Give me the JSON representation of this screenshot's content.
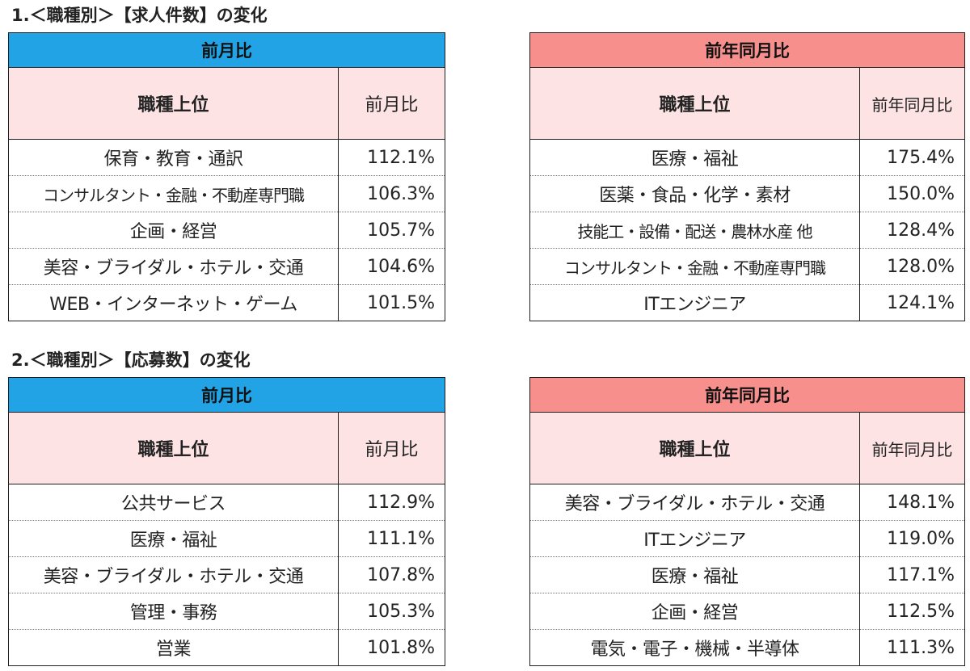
{
  "sections": [
    {
      "title": "1.＜職種別＞【求人件数】の変化",
      "mom": {
        "band": "前月比",
        "col_category": "職種上位",
        "col_value": "前月比",
        "rows": [
          {
            "name": "保育・教育・通訳",
            "value": "112.1%"
          },
          {
            "name": "コンサルタント・金融・不動産専門職",
            "value": "106.3%"
          },
          {
            "name": "企画・経営",
            "value": "105.7%"
          },
          {
            "name": "美容・ブライダル・ホテル・交通",
            "value": "104.6%"
          },
          {
            "name": "WEB・インターネット・ゲーム",
            "value": "101.5%"
          }
        ]
      },
      "yoy": {
        "band": "前年同月比",
        "col_category": "職種上位",
        "col_value": "前年同月比",
        "rows": [
          {
            "name": "医療・福祉",
            "value": "175.4%"
          },
          {
            "name": "医薬・食品・化学・素材",
            "value": "150.0%"
          },
          {
            "name": "技能工・設備・配送・農林水産 他",
            "value": "128.4%"
          },
          {
            "name": "コンサルタント・金融・不動産専門職",
            "value": "128.0%"
          },
          {
            "name": "ITエンジニア",
            "value": "124.1%"
          }
        ]
      }
    },
    {
      "title": "2.＜職種別＞【応募数】の変化",
      "mom": {
        "band": "前月比",
        "col_category": "職種上位",
        "col_value": "前月比",
        "rows": [
          {
            "name": "公共サービス",
            "value": "112.9%"
          },
          {
            "name": "医療・福祉",
            "value": "111.1%"
          },
          {
            "name": "美容・ブライダル・ホテル・交通",
            "value": "107.8%"
          },
          {
            "name": "管理・事務",
            "value": "105.3%"
          },
          {
            "name": "営業",
            "value": "101.8%"
          }
        ]
      },
      "yoy": {
        "band": "前年同月比",
        "col_category": "職種上位",
        "col_value": "前年同月比",
        "rows": [
          {
            "name": "美容・ブライダル・ホテル・交通",
            "value": "148.1%"
          },
          {
            "name": "ITエンジニア",
            "value": "119.0%"
          },
          {
            "name": "医療・福祉",
            "value": "117.1%"
          },
          {
            "name": "企画・経営",
            "value": "112.5%"
          },
          {
            "name": "電気・電子・機械・半導体",
            "value": "111.3%"
          }
        ]
      }
    }
  ],
  "colors": {
    "mom_band": "#22a3e6",
    "yoy_band": "#f7908d",
    "header_fill": "#fde3e4",
    "border": "#1f1f1f"
  }
}
